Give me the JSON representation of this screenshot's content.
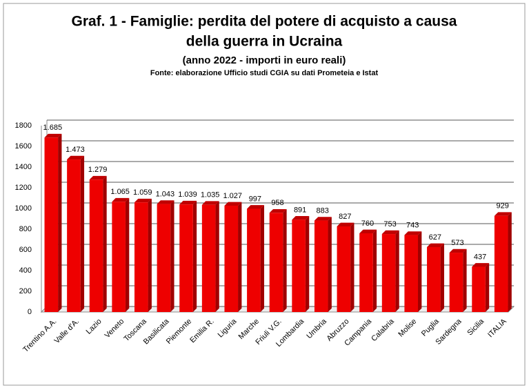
{
  "chart_data": {
    "type": "bar",
    "title": [
      "Graf. 1 - Famiglie: perdita del potere di acquisto a causa",
      "della guerra in Ucraina"
    ],
    "subtitle": "(anno 2022 - importi in euro reali)",
    "source": "Fonte: elaborazione Ufficio studi CGIA su dati Prometeia e Istat",
    "categories": [
      "Trentino A.A.",
      "Valle d'A.",
      "Lazio",
      "Veneto",
      "Toscana",
      "Basilicata",
      "Piemonte",
      "Emilia R.",
      "Liguria",
      "Marche",
      "Friuli V.G.",
      "Lombardia",
      "Umbria",
      "Abruzzo",
      "Campania",
      "Calabria",
      "Molise",
      "Puglia",
      "Sardegna",
      "Sicilia",
      "ITALIA"
    ],
    "values": [
      1685,
      1473,
      1279,
      1065,
      1059,
      1043,
      1039,
      1035,
      1027,
      997,
      958,
      891,
      883,
      827,
      760,
      753,
      743,
      627,
      573,
      437,
      929
    ],
    "value_labels": [
      "1.685",
      "1.473",
      "1.279",
      "1.065",
      "1.059",
      "1.043",
      "1.039",
      "1.035",
      "1.027",
      "997",
      "958",
      "891",
      "883",
      "827",
      "760",
      "753",
      "743",
      "627",
      "573",
      "437",
      "929"
    ],
    "color": "#ee0000",
    "ylim": [
      0,
      1800
    ],
    "yticks": [
      0,
      200,
      400,
      600,
      800,
      1000,
      1200,
      1400,
      1600,
      1800
    ],
    "grid": true
  }
}
